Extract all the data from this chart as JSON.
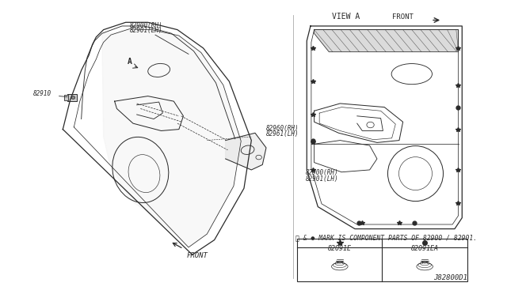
{
  "bg_color": "#ffffff",
  "line_color": "#2a2a2a",
  "title_diagram_code": "J82800D1",
  "view_a_label": "VIEW A",
  "front_label": "FRONT",
  "component_note": "★ & ● MARK IS COMPONENT PARTS OF 82900 / 82901.",
  "component_82091E": "82091E",
  "component_82091EA": "82091EA"
}
